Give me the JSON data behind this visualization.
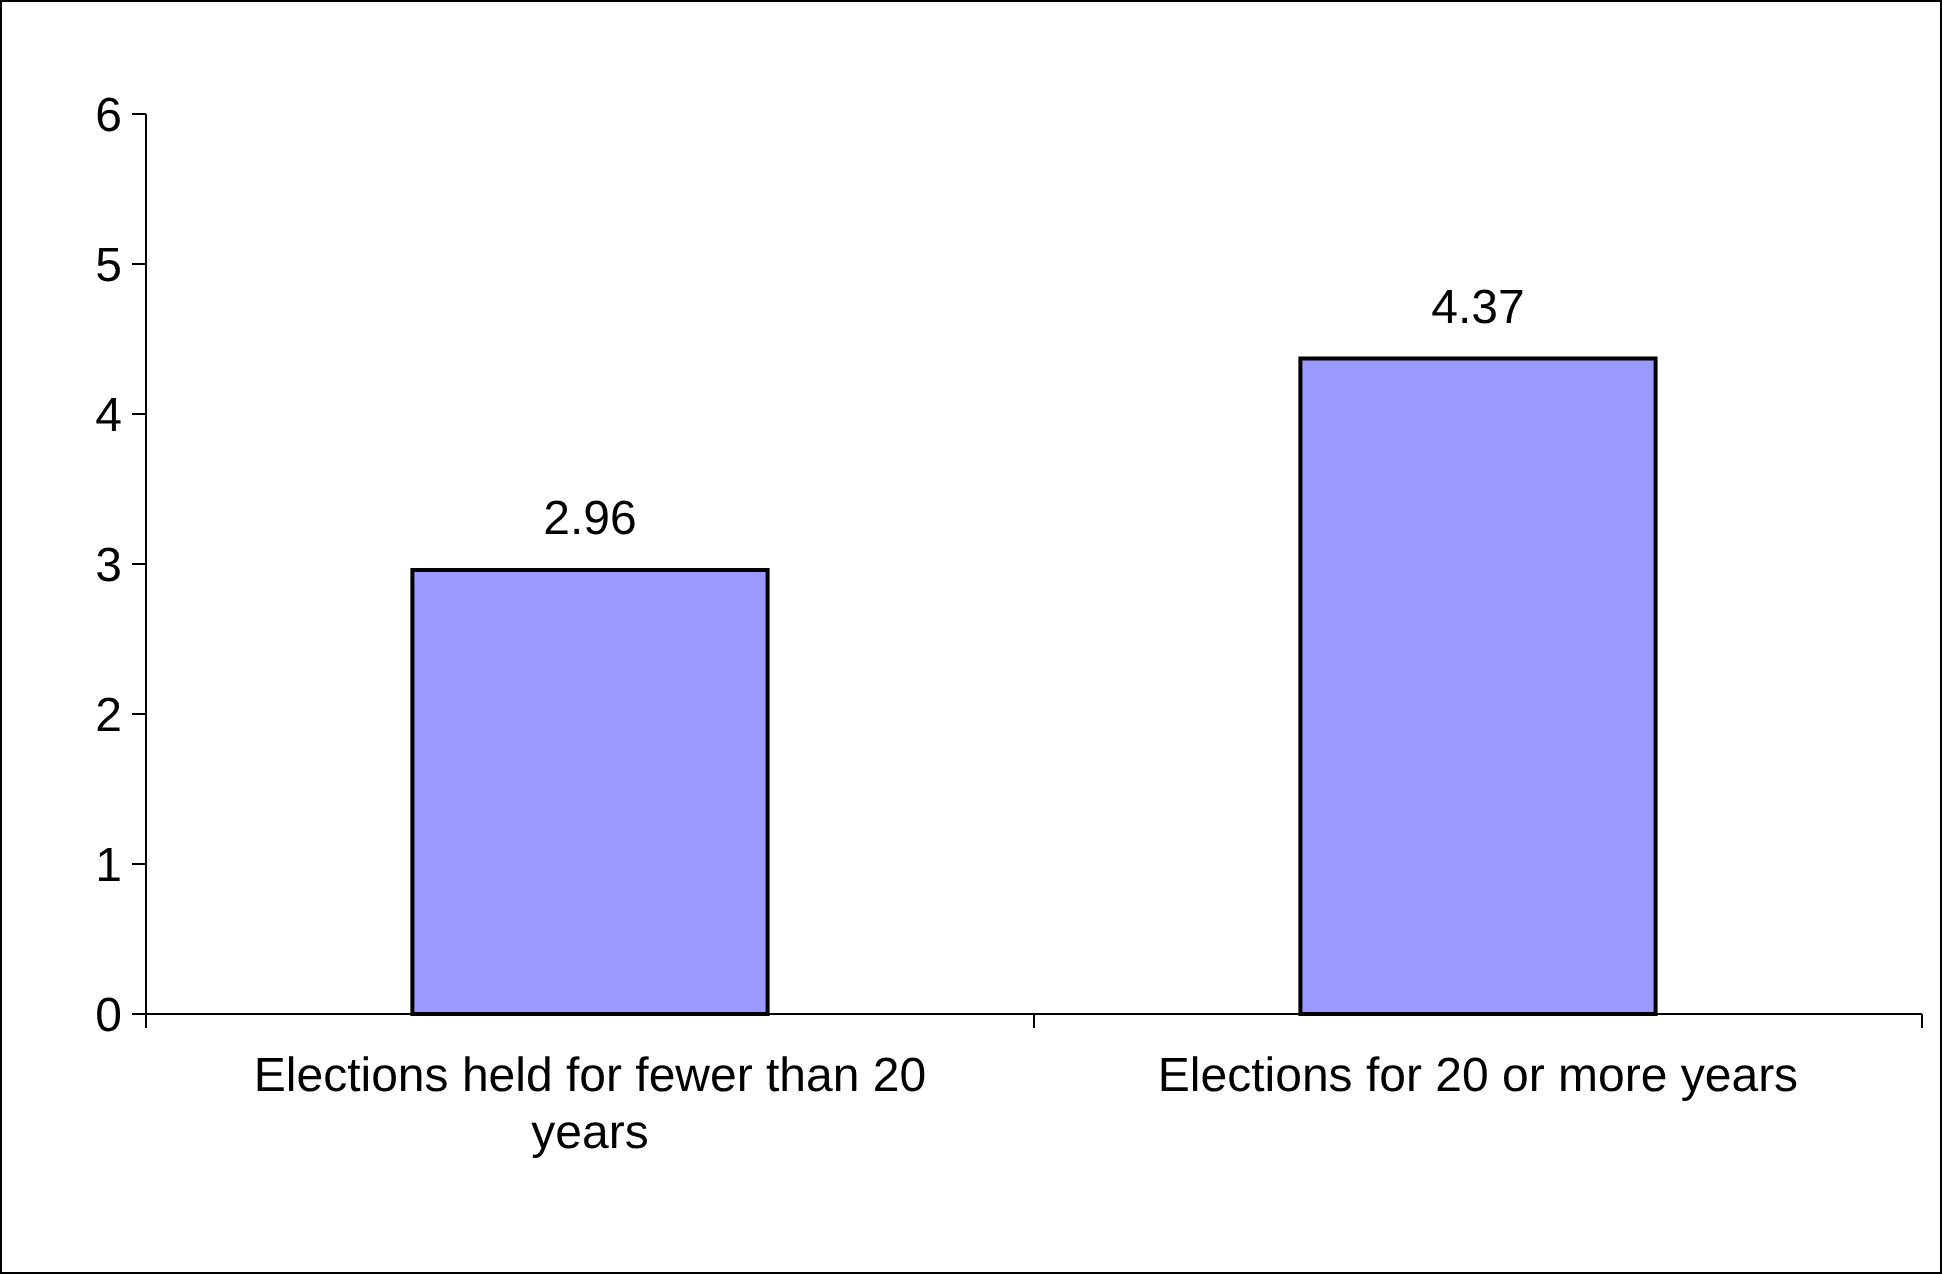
{
  "chart_data": {
    "type": "bar",
    "categories": [
      "Elections held for fewer than 20 years",
      "Elections for 20 or more years"
    ],
    "values": [
      2.96,
      4.37
    ],
    "color": "#9999ff",
    "ylim": [
      0,
      6
    ],
    "yticks": [
      0,
      1,
      2,
      3,
      4,
      5,
      6
    ],
    "grid": false,
    "data_labels": true
  }
}
